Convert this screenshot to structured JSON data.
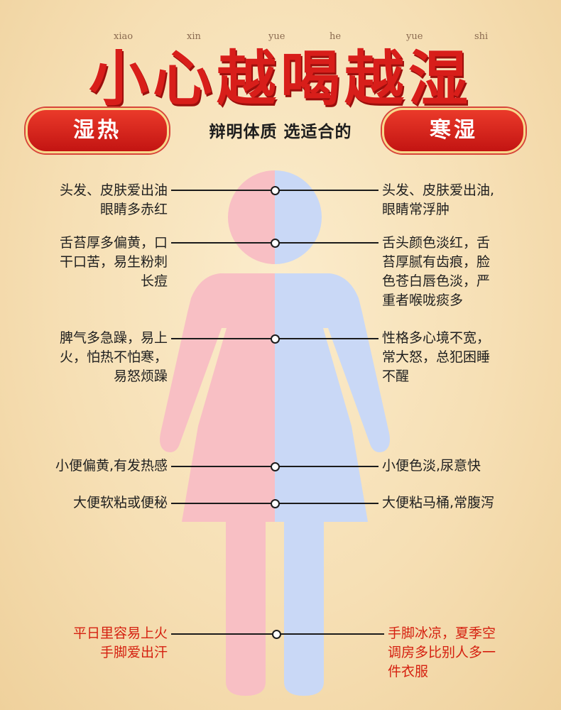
{
  "header": {
    "title": "小心越喝越湿",
    "pinyin": [
      "xiao",
      "xin",
      "yue",
      "he",
      "yue",
      "shi"
    ],
    "subtitle": "辩明体质 选适合的"
  },
  "badges": {
    "left": "湿热",
    "right": "寒湿"
  },
  "colors": {
    "title_red": "#d81e1a",
    "badge_red": "#c31412",
    "figure_left_pink": "#f8bfc4",
    "figure_right_blue": "#c9d8f6",
    "background": "#f6dfb4"
  },
  "rows": [
    {
      "left": "头发、皮肤爱出油\n眼睛多赤红",
      "right": "头发、皮肤爱出油,\n眼睛常浮肿"
    },
    {
      "left": "舌苔厚多偏黄，口\n干口苦，易生粉刺\n长痘",
      "right": "舌头颜色淡红，舌\n苔厚腻有齿痕，脸\n色苍白唇色淡，严\n重者喉咙痰多"
    },
    {
      "left": "脾气多急躁，易上\n火，怕热不怕寒，\n易怒烦躁",
      "right": "性格多心境不宽，\n常大怒，总犯困睡\n不醒"
    },
    {
      "left": "小便偏黄,有发热感",
      "right": "小便色淡,尿意快"
    },
    {
      "left": "大便软粘或便秘",
      "right": "大便粘马桶,常腹泻"
    },
    {
      "left": "平日里容易上火\n手脚爱出汗",
      "right": "手脚冰凉，夏季空\n调房多比别人多一\n件衣服"
    }
  ]
}
